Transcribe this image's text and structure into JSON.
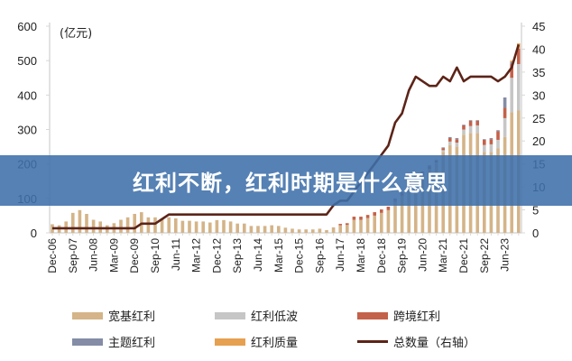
{
  "overlay": {
    "title": "红利不断，红利时期是什么意思"
  },
  "chart_data": {
    "type": "bar",
    "stacked": true,
    "unit_label": "(亿元)",
    "categories": [
      "Dec-06",
      "Mar-07",
      "Jun-07",
      "Sep-07",
      "Dec-07",
      "Mar-08",
      "Jun-08",
      "Sep-08",
      "Dec-08",
      "Mar-09",
      "Jun-09",
      "Sep-09",
      "Dec-09",
      "Mar-10",
      "Jun-10",
      "Sep-10",
      "Dec-10",
      "Mar-11",
      "Jun-11",
      "Sep-11",
      "Dec-11",
      "Mar-12",
      "Jun-12",
      "Sep-12",
      "Dec-12",
      "Mar-13",
      "Jun-13",
      "Sep-13",
      "Dec-13",
      "Mar-14",
      "Jun-14",
      "Sep-14",
      "Dec-14",
      "Mar-15",
      "Jun-15",
      "Sep-15",
      "Dec-15",
      "Mar-16",
      "Jun-16",
      "Sep-16",
      "Dec-16",
      "Mar-17",
      "Jun-17",
      "Sep-17",
      "Dec-17",
      "Mar-18",
      "Jun-18",
      "Sep-18",
      "Dec-18",
      "Mar-19",
      "Jun-19",
      "Sep-19",
      "Dec-19",
      "Mar-20",
      "Jun-20",
      "Sep-20",
      "Dec-20",
      "Mar-21",
      "Jun-21",
      "Sep-21",
      "Dec-21",
      "Mar-22",
      "Jun-22",
      "Sep-22",
      "Dec-22",
      "Mar-23",
      "Jun-23",
      "Sep-23",
      "Dec-23"
    ],
    "x_ticks": [
      "Dec-06",
      "Sep-07",
      "Jun-08",
      "Mar-09",
      "Dec-09",
      "Sep-10",
      "Jun-11",
      "Mar-12",
      "Dec-12",
      "Sep-13",
      "Jun-14",
      "Mar-15",
      "Dec-15",
      "Sep-16",
      "Jun-17",
      "Mar-18",
      "Dec-18",
      "Sep-19",
      "Jun-20",
      "Mar-21",
      "Dec-21",
      "Sep-22",
      "Jun-23"
    ],
    "y_left": {
      "lim": [
        0,
        600
      ],
      "ticks": [
        "0",
        "100",
        "200",
        "300",
        "400",
        "500",
        "600"
      ]
    },
    "y_right": {
      "lim": [
        0,
        45
      ],
      "ticks": [
        "0",
        "5",
        "10",
        "15",
        "20",
        "25",
        "30",
        "35",
        "40",
        "45"
      ]
    },
    "grid": false,
    "legend_position": "bottom",
    "series": [
      {
        "name": "宽基红利",
        "color": "#d4b488",
        "axis": "left",
        "values": [
          25,
          22,
          33,
          58,
          66,
          55,
          38,
          33,
          22,
          28,
          38,
          45,
          55,
          60,
          45,
          45,
          40,
          45,
          42,
          35,
          35,
          33,
          33,
          30,
          37,
          37,
          33,
          27,
          27,
          20,
          20,
          20,
          22,
          20,
          15,
          12,
          10,
          10,
          10,
          12,
          8,
          16,
          22,
          23,
          38,
          38,
          43,
          50,
          58,
          66,
          90,
          108,
          140,
          160,
          168,
          186,
          200,
          235,
          255,
          250,
          285,
          290,
          290,
          235,
          235,
          245,
          278,
          350,
          355
        ]
      },
      {
        "name": "红利低波",
        "color": "#c6c6c6",
        "axis": "left",
        "values": [
          0,
          0,
          0,
          0,
          0,
          0,
          0,
          0,
          0,
          0,
          0,
          0,
          0,
          0,
          0,
          0,
          0,
          0,
          0,
          0,
          0,
          0,
          0,
          0,
          0,
          0,
          0,
          0,
          0,
          0,
          0,
          0,
          0,
          0,
          0,
          0,
          0,
          0,
          0,
          0,
          0,
          0,
          0,
          0,
          0,
          0,
          0,
          0,
          0,
          0,
          0,
          0,
          0,
          0,
          0,
          0,
          4,
          5,
          10,
          12,
          15,
          20,
          22,
          20,
          22,
          25,
          55,
          100,
          135
        ]
      },
      {
        "name": "跨境红利",
        "color": "#c4614a",
        "axis": "left",
        "values": [
          0,
          0,
          0,
          0,
          0,
          0,
          0,
          0,
          0,
          0,
          0,
          0,
          0,
          0,
          0,
          0,
          0,
          0,
          0,
          0,
          0,
          0,
          0,
          0,
          0,
          0,
          0,
          0,
          0,
          0,
          0,
          0,
          0,
          0,
          0,
          0,
          0,
          0,
          0,
          0,
          0,
          0,
          4,
          5,
          9,
          9,
          9,
          10,
          10,
          10,
          6,
          6,
          6,
          6,
          6,
          6,
          6,
          6,
          10,
          10,
          12,
          15,
          13,
          15,
          15,
          25,
          30,
          40,
          45
        ]
      },
      {
        "name": "主题红利",
        "color": "#848ca6",
        "axis": "left",
        "values": [
          0,
          0,
          0,
          0,
          0,
          0,
          0,
          0,
          0,
          0,
          0,
          0,
          0,
          0,
          0,
          0,
          0,
          0,
          0,
          0,
          0,
          0,
          0,
          0,
          0,
          0,
          0,
          0,
          0,
          0,
          0,
          0,
          0,
          0,
          0,
          0,
          0,
          0,
          0,
          0,
          0,
          0,
          0,
          0,
          0,
          0,
          0,
          0,
          0,
          0,
          4,
          4,
          4,
          4,
          4,
          4,
          2,
          2,
          3,
          3,
          2,
          2,
          2,
          2,
          3,
          3,
          30,
          5,
          0
        ]
      },
      {
        "name": "红利质量",
        "color": "#e6a050",
        "axis": "left",
        "values": [
          0,
          0,
          0,
          0,
          0,
          0,
          0,
          0,
          0,
          0,
          0,
          0,
          0,
          0,
          0,
          0,
          0,
          0,
          0,
          0,
          0,
          0,
          0,
          0,
          0,
          0,
          0,
          0,
          0,
          0,
          0,
          0,
          0,
          0,
          0,
          0,
          0,
          0,
          0,
          0,
          0,
          0,
          0,
          0,
          0,
          0,
          0,
          0,
          0,
          0,
          0,
          0,
          0,
          0,
          0,
          0,
          0,
          0,
          0,
          0,
          0,
          0,
          0,
          0,
          0,
          0,
          0,
          5,
          15
        ]
      }
    ],
    "line": {
      "name": "总数量（右轴）",
      "color": "#5c2418",
      "axis": "right",
      "values": [
        1,
        1,
        1,
        1,
        1,
        1,
        1,
        1,
        1,
        1,
        1,
        1,
        1,
        2,
        2,
        2,
        3,
        4,
        4,
        4,
        4,
        4,
        4,
        4,
        4,
        4,
        4,
        4,
        4,
        4,
        4,
        4,
        4,
        4,
        4,
        4,
        4,
        4,
        4,
        4,
        4,
        6,
        7,
        7,
        9,
        11,
        13,
        15,
        17,
        19,
        24,
        26,
        31,
        34,
        33,
        32,
        32,
        34,
        33,
        36,
        33,
        34,
        34,
        34,
        34,
        33,
        34,
        36,
        41
      ]
    }
  }
}
